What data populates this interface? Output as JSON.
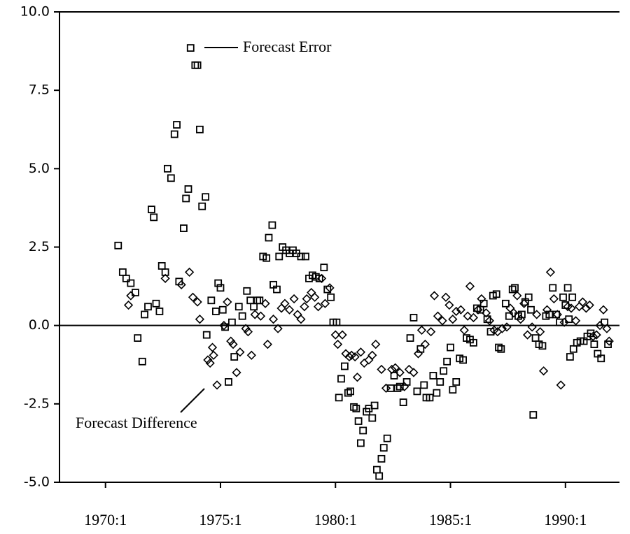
{
  "chart_data": {
    "type": "scatter",
    "xlim": [
      1968,
      1992.35
    ],
    "ylim": [
      -5,
      10
    ],
    "xticks": [
      {
        "value": 1970,
        "label": "1970:1"
      },
      {
        "value": 1975,
        "label": "1975:1"
      },
      {
        "value": 1980,
        "label": "1980:1"
      },
      {
        "value": 1985,
        "label": "1985:1"
      },
      {
        "value": 1990,
        "label": "1990:1"
      }
    ],
    "yticks": [
      {
        "value": -5,
        "label": "-5.0"
      },
      -2.5,
      {
        "value": 0,
        "label": "0.0"
      },
      2.5,
      {
        "value": 5,
        "label": "5.0"
      },
      7.5,
      {
        "value": 10,
        "label": "10.0"
      }
    ],
    "zero_line": true,
    "series": [
      {
        "name": "Forecast Error",
        "marker": "square",
        "color": "#000000",
        "x": [
          1970.55,
          1970.75,
          1970.9,
          1971.1,
          1971.3,
          1971.4,
          1971.6,
          1971.7,
          1971.85,
          1972.0,
          1972.1,
          1972.2,
          1972.35,
          1972.45,
          1972.6,
          1972.7,
          1972.85,
          1973.0,
          1973.1,
          1973.2,
          1973.4,
          1973.5,
          1973.6,
          1973.7,
          1973.9,
          1974.0,
          1974.1,
          1974.2,
          1974.35,
          1974.4,
          1974.6,
          1974.8,
          1974.9,
          1975.0,
          1975.1,
          1975.2,
          1975.35,
          1975.5,
          1975.6,
          1975.8,
          1975.95,
          1976.15,
          1976.3,
          1976.45,
          1976.6,
          1976.7,
          1976.85,
          1977.0,
          1977.1,
          1977.25,
          1977.3,
          1977.45,
          1977.55,
          1977.7,
          1977.85,
          1978.0,
          1978.15,
          1978.3,
          1978.5,
          1978.7,
          1978.85,
          1979.0,
          1979.15,
          1979.3,
          1979.5,
          1979.65,
          1979.8,
          1979.9,
          1980.05,
          1980.15,
          1980.25,
          1980.4,
          1980.55,
          1980.65,
          1980.8,
          1980.9,
          1981.0,
          1981.1,
          1981.2,
          1981.35,
          1981.45,
          1981.6,
          1981.7,
          1981.8,
          1981.9,
          1982.0,
          1982.1,
          1982.25,
          1982.4,
          1982.55,
          1982.7,
          1982.8,
          1982.95,
          1983.1,
          1983.25,
          1983.4,
          1983.55,
          1983.7,
          1983.85,
          1983.95,
          1984.1,
          1984.25,
          1984.4,
          1984.55,
          1984.7,
          1984.85,
          1985.0,
          1985.1,
          1985.25,
          1985.4,
          1985.55,
          1985.7,
          1985.85,
          1986.0,
          1986.15,
          1986.3,
          1986.45,
          1986.6,
          1986.75,
          1986.85,
          1987.0,
          1987.1,
          1987.2,
          1987.4,
          1987.55,
          1987.7,
          1987.8,
          1987.95,
          1988.1,
          1988.25,
          1988.4,
          1988.5,
          1988.6,
          1988.7,
          1988.85,
          1989.0,
          1989.15,
          1989.3,
          1989.45,
          1989.6,
          1989.75,
          1989.9,
          1990.0,
          1990.1,
          1990.15,
          1990.2,
          1990.3,
          1990.35,
          1990.5,
          1990.65,
          1990.8,
          1990.95,
          1991.1,
          1991.25,
          1991.4,
          1991.55,
          1991.7,
          1991.85
        ],
        "values": [
          2.55,
          1.7,
          1.5,
          1.35,
          1.05,
          -0.4,
          -1.15,
          0.35,
          0.6,
          3.7,
          3.45,
          0.7,
          0.45,
          1.9,
          1.7,
          5.0,
          4.7,
          6.1,
          6.4,
          1.4,
          3.1,
          4.05,
          4.35,
          8.85,
          8.3,
          8.3,
          6.25,
          3.8,
          4.1,
          -0.3,
          0.8,
          0.45,
          1.35,
          1.2,
          0.5,
          -0.05,
          -1.8,
          0.1,
          -1.0,
          0.6,
          0.3,
          1.1,
          0.8,
          0.6,
          0.8,
          0.8,
          2.2,
          2.15,
          2.8,
          3.2,
          1.3,
          1.15,
          2.2,
          2.5,
          2.4,
          2.3,
          2.4,
          2.3,
          2.2,
          2.2,
          1.5,
          1.6,
          1.55,
          1.5,
          1.85,
          1.15,
          0.9,
          0.1,
          0.1,
          -2.3,
          -1.7,
          -1.3,
          -2.15,
          -2.1,
          -2.6,
          -2.65,
          -3.05,
          -3.75,
          -3.35,
          -2.75,
          -2.65,
          -2.95,
          -2.55,
          -4.6,
          -4.8,
          -4.25,
          -3.9,
          -3.6,
          -2.0,
          -1.6,
          -2.0,
          -1.95,
          -2.45,
          -1.8,
          -0.4,
          0.25,
          -2.1,
          -0.75,
          -1.9,
          -2.3,
          -2.3,
          -1.6,
          -2.15,
          -1.8,
          -1.45,
          -1.15,
          -0.7,
          -2.05,
          -1.8,
          -1.05,
          -1.1,
          -0.4,
          -0.45,
          -0.55,
          0.55,
          0.5,
          0.7,
          0.2,
          -0.2,
          0.95,
          1.0,
          -0.7,
          -0.75,
          0.7,
          0.3,
          1.15,
          1.2,
          0.3,
          0.35,
          0.75,
          0.9,
          0.5,
          -2.85,
          -0.4,
          -0.6,
          -0.65,
          0.3,
          0.35,
          1.2,
          0.35,
          0.1,
          0.9,
          0.65,
          1.2,
          0.2,
          -1.0,
          0.9,
          -0.75,
          -0.55,
          -0.5,
          -0.5,
          -0.35,
          -0.25,
          -0.6,
          -0.9,
          -1.05,
          0.1,
          -0.6
        ]
      },
      {
        "name": "Forecast Difference",
        "marker": "diamond",
        "color": "#000000",
        "x": [
          1971.0,
          1971.1,
          1972.6,
          1973.3,
          1973.65,
          1973.8,
          1974.0,
          1974.1,
          1974.45,
          1974.55,
          1974.65,
          1974.7,
          1974.85,
          1975.15,
          1975.3,
          1975.45,
          1975.55,
          1975.7,
          1975.85,
          1976.1,
          1976.2,
          1976.35,
          1976.5,
          1976.75,
          1976.95,
          1977.05,
          1977.3,
          1977.5,
          1977.65,
          1977.8,
          1978.0,
          1978.2,
          1978.35,
          1978.5,
          1978.65,
          1978.75,
          1978.95,
          1979.1,
          1979.25,
          1979.4,
          1979.55,
          1979.75,
          1980.0,
          1980.1,
          1980.3,
          1980.45,
          1980.6,
          1980.7,
          1980.85,
          1980.95,
          1981.1,
          1981.25,
          1981.45,
          1981.6,
          1981.75,
          1982.0,
          1982.2,
          1982.45,
          1982.6,
          1982.8,
          1983.0,
          1983.2,
          1983.4,
          1983.6,
          1983.75,
          1983.9,
          1984.15,
          1984.3,
          1984.45,
          1984.65,
          1984.8,
          1984.95,
          1985.1,
          1985.25,
          1985.45,
          1985.6,
          1985.75,
          1985.85,
          1986.0,
          1986.2,
          1986.35,
          1986.55,
          1986.7,
          1986.9,
          1987.05,
          1987.25,
          1987.45,
          1987.6,
          1987.75,
          1987.9,
          1988.05,
          1988.2,
          1988.35,
          1988.55,
          1988.75,
          1988.9,
          1989.05,
          1989.2,
          1989.35,
          1989.5,
          1989.65,
          1989.8,
          1989.95,
          1990.1,
          1990.25,
          1990.45,
          1990.6,
          1990.75,
          1990.9,
          1991.05,
          1991.2,
          1991.35,
          1991.5,
          1991.65,
          1991.8,
          1991.9
        ],
        "values": [
          0.65,
          0.95,
          1.5,
          1.3,
          1.7,
          0.9,
          0.75,
          0.2,
          -1.1,
          -1.2,
          -0.7,
          -0.95,
          -1.9,
          0.0,
          0.75,
          -0.5,
          -0.6,
          -1.5,
          -0.85,
          -0.1,
          -0.2,
          -0.95,
          0.35,
          0.3,
          0.7,
          -0.6,
          0.2,
          -0.1,
          0.55,
          0.7,
          0.5,
          0.85,
          0.35,
          0.2,
          0.6,
          0.85,
          1.05,
          0.9,
          0.6,
          1.5,
          0.7,
          1.2,
          -0.3,
          -0.6,
          -0.3,
          -0.9,
          -1.0,
          -0.95,
          -1.0,
          -1.65,
          -0.85,
          -1.2,
          -1.1,
          -0.95,
          -0.6,
          -1.4,
          -2.0,
          -1.4,
          -1.35,
          -1.5,
          -1.95,
          -1.4,
          -1.5,
          -0.9,
          -0.15,
          -0.6,
          -0.2,
          0.95,
          0.3,
          0.15,
          0.9,
          0.65,
          0.2,
          0.45,
          0.5,
          -0.15,
          0.3,
          1.25,
          0.25,
          0.5,
          0.85,
          0.4,
          0.15,
          -0.15,
          -0.2,
          -0.1,
          -0.05,
          0.55,
          0.4,
          0.95,
          0.2,
          0.7,
          -0.3,
          -0.05,
          0.35,
          -0.2,
          -1.45,
          0.5,
          1.7,
          0.85,
          0.35,
          -1.9,
          0.1,
          0.6,
          0.55,
          0.15,
          0.6,
          0.75,
          0.55,
          0.65,
          -0.35,
          -0.3,
          0.0,
          0.5,
          -0.1,
          -0.5
        ]
      }
    ]
  }
}
